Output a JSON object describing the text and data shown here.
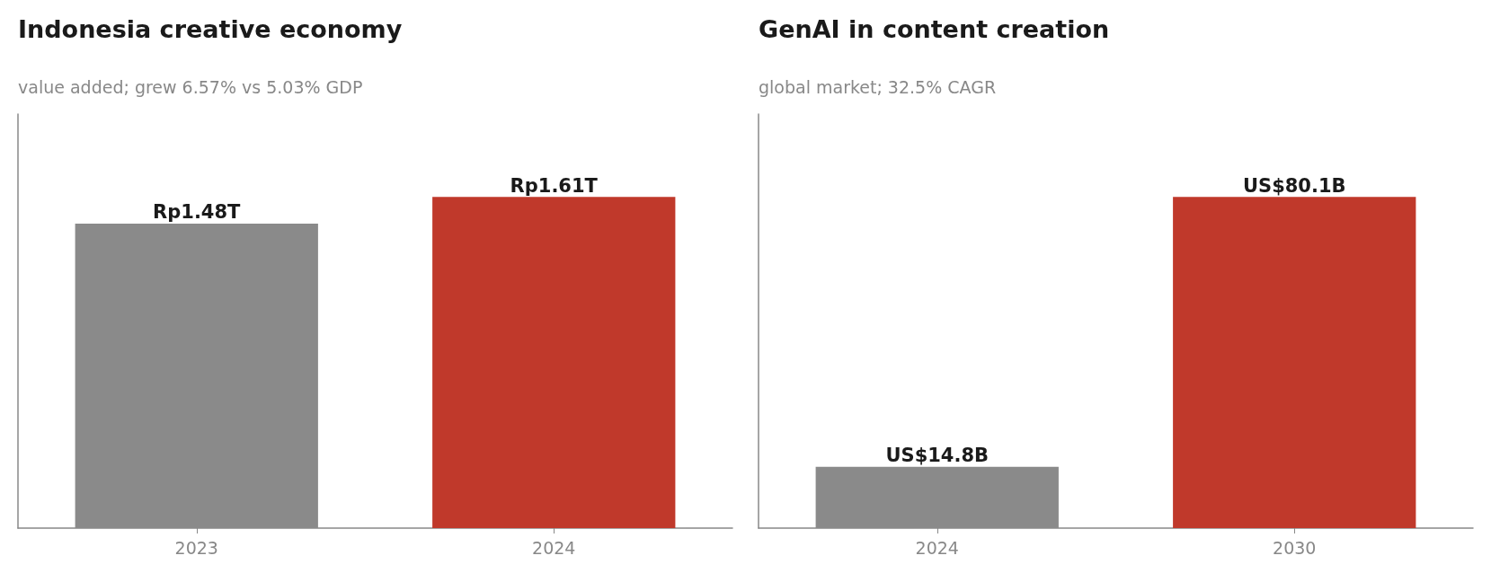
{
  "chart_data": [
    {
      "type": "bar",
      "title": "Indonesia creative economy",
      "subtitle": "value added; grew 6.57% vs 5.03% GDP",
      "categories": [
        "2023",
        "2024"
      ],
      "values": [
        1480000000000,
        1610000000000
      ],
      "value_labels": [
        "Rp1.48T",
        "Rp1.61T"
      ],
      "colors": [
        "#8a8a8a",
        "#c0392b"
      ]
    },
    {
      "type": "bar",
      "title": "GenAI in content creation",
      "subtitle": "global market; 32.5% CAGR",
      "categories": [
        "2024",
        "2030"
      ],
      "values": [
        14800000000,
        80100000000
      ],
      "value_labels": [
        "US$14.8B",
        "US$80.1B"
      ],
      "colors": [
        "#8a8a8a",
        "#c0392b"
      ]
    }
  ]
}
